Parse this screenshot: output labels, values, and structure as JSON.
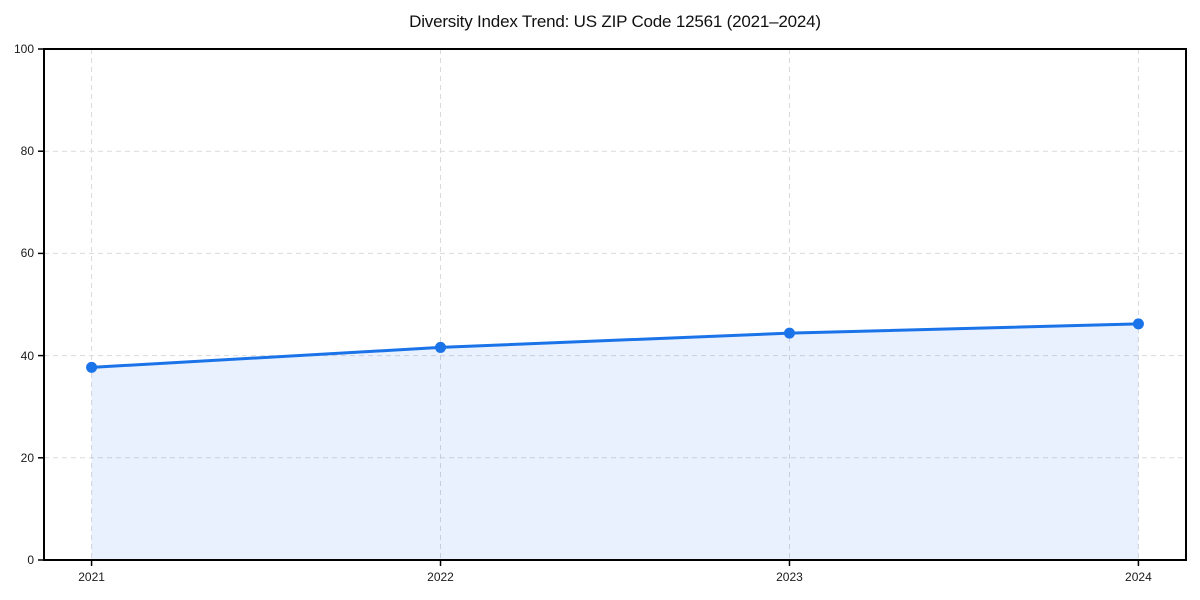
{
  "chart_data": {
    "type": "line",
    "title": "Diversity Index Trend: US ZIP Code 12561 (2021–2024)",
    "xlabel": "",
    "ylabel": "",
    "categories": [
      "2021",
      "2022",
      "2023",
      "2024"
    ],
    "series": [
      {
        "name": "Diversity Index",
        "values": [
          37.7,
          41.6,
          44.4,
          46.2
        ]
      }
    ],
    "ylim": [
      0,
      100
    ],
    "yticks": [
      0,
      20,
      40,
      60,
      80,
      100
    ],
    "grid": true,
    "grid_style": "dashed",
    "legend_position": "none",
    "x_margin_frac": 0.04545,
    "colors": {
      "line": "#1a73e8",
      "marker": "#1a73e8",
      "fill": "#1a73e8",
      "fill_opacity": 0.1,
      "grid": "#dadada",
      "spine": "#000000",
      "tick_label": "#1a1a1a",
      "title": "#111111",
      "background": "#ffffff"
    }
  }
}
